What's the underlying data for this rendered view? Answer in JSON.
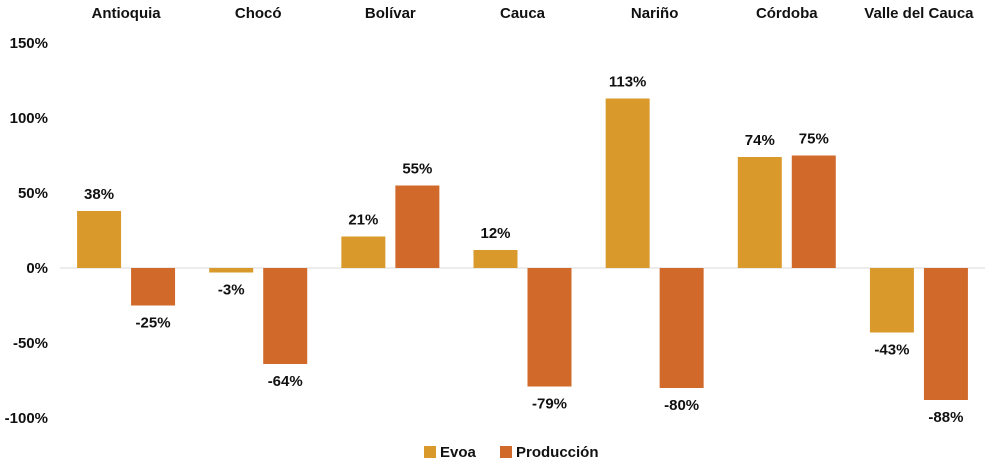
{
  "chart_data": {
    "type": "bar",
    "categories": [
      "Antioquia",
      "Chocó",
      "Bolívar",
      "Cauca",
      "Nariño",
      "Córdoba",
      "Valle del Cauca"
    ],
    "series": [
      {
        "name": "Evoa",
        "color": "#DA9A2B",
        "values": [
          38,
          -3,
          21,
          12,
          113,
          74,
          -43
        ]
      },
      {
        "name": "Producción",
        "color": "#D1692A",
        "values": [
          -25,
          -64,
          55,
          -79,
          -80,
          75,
          -88
        ]
      }
    ],
    "data_labels": {
      "Evoa": [
        "38%",
        "-3%",
        "21%",
        "12%",
        "113%",
        "74%",
        "-43%"
      ],
      "Producción": [
        "-25%",
        "-64%",
        "55%",
        "-79%",
        "-80%",
        "75%",
        "-88%"
      ]
    },
    "yticks": [
      150,
      100,
      50,
      0,
      -50,
      -100
    ],
    "ytick_labels": [
      "150%",
      "100%",
      "50%",
      "0%",
      "-50%",
      "-100%"
    ],
    "ylim": [
      -100,
      150
    ],
    "category_position": "top",
    "legend_position": "bottom",
    "grid": false
  }
}
